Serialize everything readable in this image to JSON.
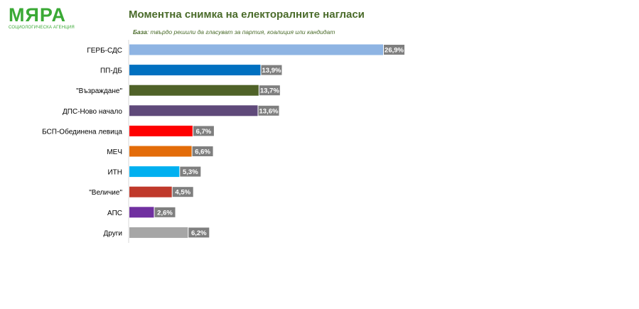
{
  "logo": {
    "word": "МЯРА",
    "subtitle": "СОЦИОЛОГИЧЕСКА АГЕНЦИЯ"
  },
  "header": {
    "title": "Моментна снимка на електоралните нагласи",
    "base_label": "База",
    "base_text": ": твърдо решили да гласуват за партия, коалиция или кандидат"
  },
  "chart_data": {
    "type": "bar",
    "orientation": "horizontal",
    "title": "Моментна снимка на електоралните нагласи",
    "categories": [
      "ГЕРБ-СДС",
      "ПП-ДБ",
      "\"Възраждане\"",
      "ДПС-Ново начало",
      "БСП-Обединена левица",
      "МЕЧ",
      "ИТН",
      "\"Величие\"",
      "АПС",
      "Други"
    ],
    "values": [
      26.9,
      13.9,
      13.7,
      13.6,
      6.7,
      6.6,
      5.3,
      4.5,
      2.6,
      6.2
    ],
    "value_labels": [
      "26,9%",
      "13,9%",
      "13,7%",
      "13,6%",
      "6,7%",
      "6,6%",
      "5,3%",
      "4,5%",
      "2,6%",
      "6,2%"
    ],
    "colors": [
      "#8eb4e3",
      "#0070c0",
      "#4f6228",
      "#5f497a",
      "#ff0000",
      "#e36c09",
      "#00b0f0",
      "#c0392b",
      "#7030a0",
      "#a6a6a6"
    ],
    "label_background": "#7f7f7f",
    "xlim": [
      0,
      26.9
    ],
    "grid": false,
    "legend": "none"
  }
}
